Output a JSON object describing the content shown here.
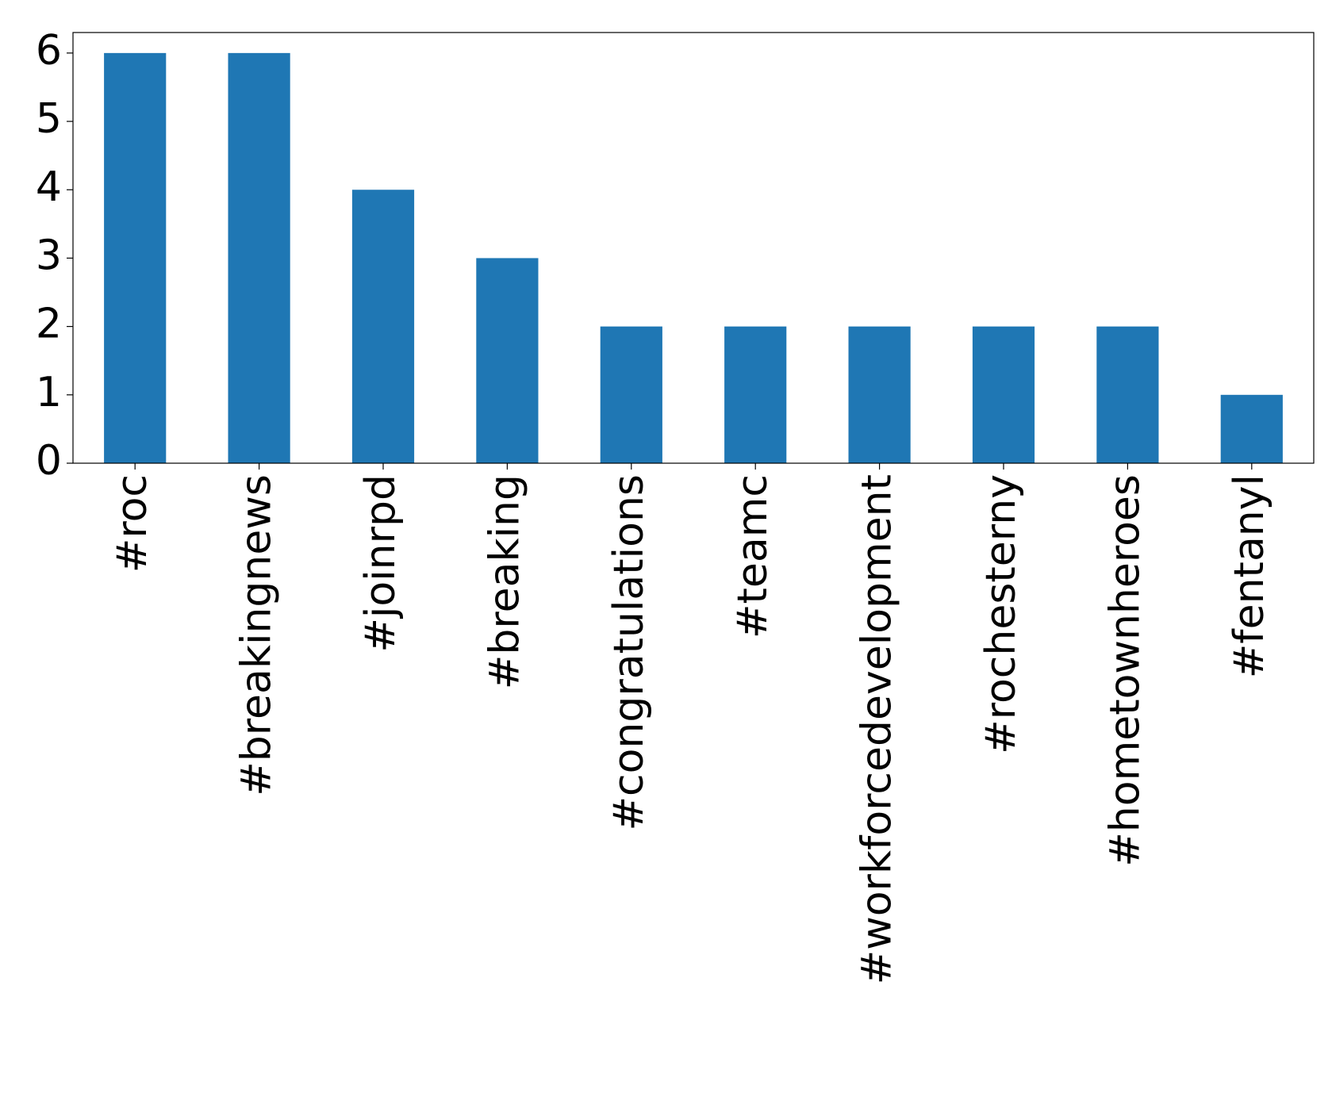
{
  "chart_data": {
    "type": "bar",
    "categories": [
      "#roc",
      "#breakingnews",
      "#joinrpd",
      "#breaking",
      "#congratulations",
      "#teamc",
      "#workforcedevelopment",
      "#rochesterny",
      "#hometownheroes",
      "#fentanyl"
    ],
    "values": [
      6,
      6,
      4,
      3,
      2,
      2,
      2,
      2,
      2,
      1
    ],
    "color": "#1f77b4",
    "ylim": [
      0,
      6.3
    ],
    "yticks": [
      0,
      1,
      2,
      3,
      4,
      5,
      6
    ],
    "grid": false
  }
}
